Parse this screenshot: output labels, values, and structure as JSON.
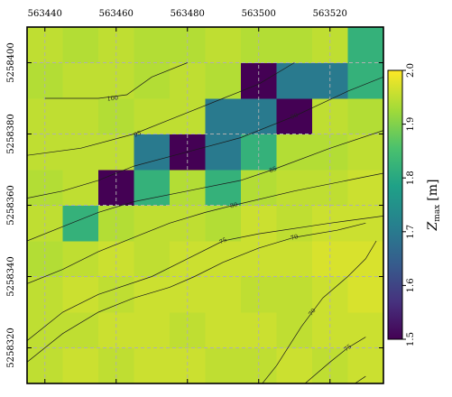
{
  "chart_data": {
    "type": "heatmap",
    "title": "",
    "xlabel": "",
    "ylabel": "",
    "x_ticks": [
      563440,
      563460,
      563480,
      563500,
      563520
    ],
    "y_ticks": [
      5258320,
      5258340,
      5258360,
      5258380,
      5258400
    ],
    "x_range": [
      563435,
      563535
    ],
    "y_range": [
      5258310,
      5258410
    ],
    "grid": true,
    "grid_cell_size": 10,
    "grid_origin": [
      563435,
      5258310
    ],
    "z_grid": [
      [
        1.95,
        1.96,
        1.95,
        1.96,
        1.96,
        1.95,
        1.95,
        1.96,
        1.95,
        1.96
      ],
      [
        1.95,
        1.95,
        1.96,
        1.96,
        1.95,
        1.96,
        1.96,
        1.95,
        1.96,
        1.96
      ],
      [
        1.95,
        1.96,
        1.95,
        1.96,
        1.96,
        1.96,
        1.95,
        1.95,
        1.96,
        1.97
      ],
      [
        1.94,
        1.95,
        1.96,
        1.95,
        1.96,
        1.96,
        1.96,
        1.96,
        1.97,
        1.97
      ],
      [
        1.95,
        1.82,
        1.94,
        1.95,
        1.95,
        1.94,
        1.96,
        1.95,
        1.96,
        1.96
      ],
      [
        1.94,
        1.95,
        1.5,
        1.82,
        1.94,
        1.82,
        1.94,
        1.95,
        1.95,
        1.96
      ],
      [
        1.95,
        1.95,
        1.95,
        1.7,
        1.5,
        1.7,
        1.82,
        1.94,
        1.94,
        1.95
      ],
      [
        1.95,
        1.95,
        1.94,
        1.95,
        1.95,
        1.7,
        1.7,
        1.5,
        1.95,
        1.94
      ],
      [
        1.94,
        1.95,
        1.95,
        1.94,
        1.95,
        1.94,
        1.5,
        1.7,
        1.7,
        1.82
      ],
      [
        1.95,
        1.94,
        1.95,
        1.94,
        1.94,
        1.95,
        1.94,
        1.94,
        1.95,
        1.82
      ]
    ],
    "colorbar": {
      "label_base": "Z",
      "label_sub": "max",
      "label_unit": "[m]",
      "min": 1.5,
      "max": 2.0,
      "ticks": [
        "1.5",
        "1.6",
        "1.7",
        "1.8",
        "1.9",
        "2.0"
      ],
      "colormap": "viridis"
    },
    "contours": [
      {
        "label": "100",
        "label_at": [
          563459,
          5258390
        ],
        "points": [
          [
            563440,
            5258390
          ],
          [
            563455,
            5258390
          ],
          [
            563463,
            5258391
          ],
          [
            563470,
            5258396
          ],
          [
            563480,
            5258400
          ]
        ]
      },
      {
        "label": "95",
        "label_at": [
          563466,
          5258380
        ],
        "points": [
          [
            563435,
            5258374
          ],
          [
            563450,
            5258376
          ],
          [
            563465,
            5258380
          ],
          [
            563475,
            5258384
          ],
          [
            563480,
            5258386
          ],
          [
            563490,
            5258390
          ],
          [
            563500,
            5258394
          ],
          [
            563510,
            5258400
          ]
        ]
      },
      {
        "label": "90",
        "label_at": [
          563510,
          5258385
        ],
        "points": [
          [
            563435,
            5258362
          ],
          [
            563445,
            5258364
          ],
          [
            563455,
            5258367
          ],
          [
            563465,
            5258371
          ],
          [
            563480,
            5258375
          ],
          [
            563495,
            5258379
          ],
          [
            563510,
            5258385
          ],
          [
            563525,
            5258392
          ],
          [
            563535,
            5258396
          ]
        ]
      },
      {
        "label": "85",
        "label_at": [
          563504,
          5258370
        ],
        "points": [
          [
            563435,
            5258350
          ],
          [
            563445,
            5258354
          ],
          [
            563455,
            5258358
          ],
          [
            563465,
            5258361
          ],
          [
            563480,
            5258364
          ],
          [
            563495,
            5258367
          ],
          [
            563504,
            5258370
          ],
          [
            563520,
            5258376
          ],
          [
            563535,
            5258381
          ]
        ]
      },
      {
        "label": "80",
        "label_at": [
          563493,
          5258360
        ],
        "points": [
          [
            563435,
            5258338
          ],
          [
            563445,
            5258342
          ],
          [
            563455,
            5258347
          ],
          [
            563465,
            5258351
          ],
          [
            563475,
            5258355
          ],
          [
            563485,
            5258358
          ],
          [
            563493,
            5258360
          ],
          [
            563510,
            5258364
          ],
          [
            563530,
            5258368
          ],
          [
            563535,
            5258369
          ]
        ]
      },
      {
        "label": "75",
        "label_at": [
          563490,
          5258350
        ],
        "points": [
          [
            563435,
            5258322
          ],
          [
            563445,
            5258330
          ],
          [
            563455,
            5258335
          ],
          [
            563470,
            5258340
          ],
          [
            563480,
            5258345
          ],
          [
            563490,
            5258350
          ],
          [
            563500,
            5258352
          ],
          [
            563520,
            5258355
          ],
          [
            563535,
            5258357
          ]
        ]
      },
      {
        "label": "70",
        "label_at": [
          563510,
          5258351
        ],
        "points": [
          [
            563435,
            5258316
          ],
          [
            563445,
            5258324
          ],
          [
            563455,
            5258330
          ],
          [
            563465,
            5258334
          ],
          [
            563475,
            5258337
          ],
          [
            563482,
            5258340
          ],
          [
            563490,
            5258344
          ],
          [
            563500,
            5258348
          ],
          [
            563510,
            5258351
          ],
          [
            563522,
            5258353
          ],
          [
            563530,
            5258355
          ]
        ]
      },
      {
        "label": "70",
        "label_at": [
          563515,
          5258330
        ],
        "points": [
          [
            563497,
            5258305
          ],
          [
            563505,
            5258315
          ],
          [
            563512,
            5258326
          ],
          [
            563518,
            5258334
          ],
          [
            563525,
            5258340
          ],
          [
            563530,
            5258345
          ],
          [
            563533,
            5258350
          ]
        ]
      },
      {
        "label": "75",
        "label_at": [
          563525,
          5258320
        ],
        "points": [
          [
            563513,
            5258310
          ],
          [
            563520,
            5258316
          ],
          [
            563525,
            5258320
          ],
          [
            563530,
            5258323
          ]
        ]
      },
      {
        "label": "",
        "label_at": null,
        "points": [
          [
            563527,
            5258310
          ],
          [
            563530,
            5258312
          ]
        ]
      }
    ]
  }
}
